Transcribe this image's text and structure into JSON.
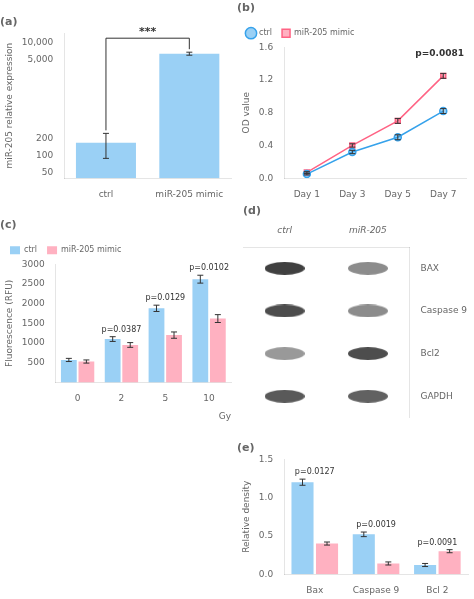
{
  "chart_data": [
    {
      "type": "bar",
      "title": "(a)",
      "categories": [
        "ctrl",
        "miR-205 mimic"
      ],
      "values": [
        170,
        6500
      ],
      "errors": [
        80,
        400
      ],
      "ylabel": "miR-205 relative expression",
      "log": "y",
      "ylim": [
        40,
        15000
      ],
      "yticks": [
        50,
        100,
        200,
        {
          "value": 5000,
          "label": "5,000"
        },
        {
          "value": 10000,
          "label": "10,000"
        }
      ],
      "annotation": "***",
      "grid": false
    },
    {
      "type": "line",
      "title": "(b)",
      "x": [
        1,
        3,
        5,
        7
      ],
      "series": [
        {
          "name": "ctrl",
          "values": [
            0.05,
            0.32,
            0.5,
            0.82
          ],
          "errors": [
            0.01,
            0.02,
            0.03,
            0.03
          ],
          "marker": "circle"
        },
        {
          "name": "miR-205 mimic",
          "values": [
            0.07,
            0.4,
            0.7,
            1.25
          ],
          "errors": [
            0.01,
            0.02,
            0.03,
            0.03
          ],
          "marker": "square"
        }
      ],
      "ylabel": "OD value",
      "xlim": [
        0,
        8
      ],
      "xticks": [
        {
          "value": 1,
          "label": "Day 1"
        },
        {
          "value": 3,
          "label": "Day 3"
        },
        {
          "value": 5,
          "label": "Day 5"
        },
        {
          "value": 7,
          "label": "Day 7"
        }
      ],
      "ylim": [
        0,
        1.6
      ],
      "yticks": [
        {
          "value": 0,
          "label": "0.0"
        },
        0.4,
        0.8,
        1.2,
        1.6
      ],
      "legend": "upper left",
      "annotation": "p=0.0081",
      "grid": false
    },
    {
      "type": "bar",
      "title": "(c)",
      "categories": [
        0,
        2,
        5,
        10
      ],
      "series": [
        {
          "name": "ctrl",
          "values": [
            570,
            1100,
            1880,
            2620
          ],
          "errors": [
            40,
            60,
            80,
            100
          ]
        },
        {
          "name": "miR-205 mimic",
          "values": [
            530,
            950,
            1200,
            1620
          ],
          "errors": [
            40,
            60,
            80,
            100
          ]
        }
      ],
      "xlabel": "Gy",
      "ylabel": "Fluorescence (RFU)",
      "ylim": [
        0,
        3000
      ],
      "yticks": [
        500,
        1000,
        1500,
        2000,
        2500,
        3000
      ],
      "annotations": [
        null,
        "p=0.0387",
        "p=0.0129",
        "p=0.0102"
      ],
      "legend": "upper left",
      "grid": false
    },
    {
      "type": "blot",
      "title": "(d)",
      "categories": [
        "BAX",
        "Caspase 9",
        "Bcl2",
        "GAPDH"
      ],
      "series": [
        {
          "name": "ctrl",
          "values": [
            0.25,
            0.3,
            0.6,
            0.35
          ]
        },
        {
          "name": "miR-205",
          "values": [
            0.55,
            0.55,
            0.3,
            0.38
          ]
        }
      ]
    },
    {
      "type": "bar",
      "title": "(e)",
      "categories": [
        "Bax",
        "Caspase 9",
        "Bcl 2"
      ],
      "series": [
        {
          "values": [
            1.2,
            0.52,
            0.12
          ],
          "errors": [
            0.04,
            0.03,
            0.02
          ]
        },
        {
          "values": [
            0.4,
            0.14,
            0.3
          ],
          "errors": [
            0.02,
            0.02,
            0.02
          ]
        }
      ],
      "ylabel": "Relative density",
      "ylim": [
        0,
        1.5
      ],
      "yticks": [
        {
          "value": 0,
          "label": "0.0"
        },
        0.5,
        {
          "value": 1,
          "label": "1.0"
        },
        1.5
      ],
      "annotations": [
        "p=0.0127",
        "p=0.0019",
        "p=0.0091"
      ],
      "grid": false
    }
  ]
}
